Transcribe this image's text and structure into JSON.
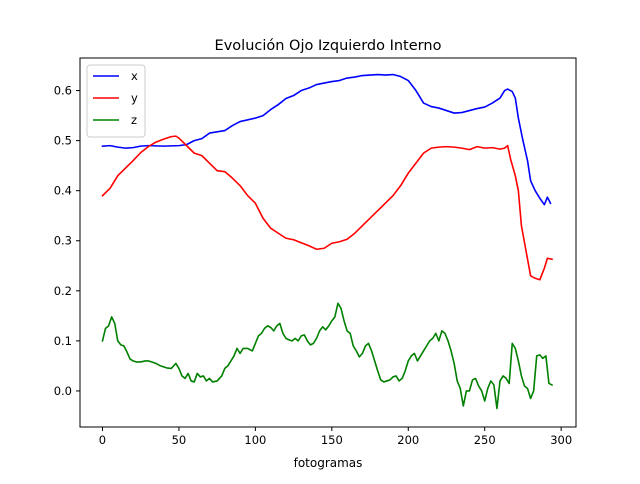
{
  "chart_data": {
    "type": "line",
    "title": "Evolución Ojo Izquierdo Interno",
    "xlabel": "fotogramas",
    "ylabel": "",
    "xlim": [
      -14.7,
      309.7
    ],
    "ylim": [
      -0.072,
      0.665
    ],
    "grid": false,
    "legend_position": "top-left",
    "x_ticks": [
      0,
      50,
      100,
      150,
      200,
      250,
      300
    ],
    "y_ticks": [
      0.0,
      0.1,
      0.2,
      0.3,
      0.4,
      0.5,
      0.6
    ],
    "series": [
      {
        "name": "x",
        "color": "#0000ff",
        "points": [
          [
            0,
            0.489
          ],
          [
            5,
            0.49
          ],
          [
            10,
            0.487
          ],
          [
            15,
            0.485
          ],
          [
            20,
            0.486
          ],
          [
            25,
            0.489
          ],
          [
            30,
            0.49
          ],
          [
            40,
            0.489
          ],
          [
            50,
            0.49
          ],
          [
            55,
            0.492
          ],
          [
            60,
            0.5
          ],
          [
            65,
            0.504
          ],
          [
            70,
            0.515
          ],
          [
            80,
            0.52
          ],
          [
            85,
            0.53
          ],
          [
            90,
            0.538
          ],
          [
            100,
            0.545
          ],
          [
            105,
            0.55
          ],
          [
            110,
            0.562
          ],
          [
            115,
            0.572
          ],
          [
            120,
            0.584
          ],
          [
            125,
            0.59
          ],
          [
            130,
            0.6
          ],
          [
            135,
            0.605
          ],
          [
            140,
            0.612
          ],
          [
            145,
            0.615
          ],
          [
            150,
            0.618
          ],
          [
            155,
            0.62
          ],
          [
            160,
            0.625
          ],
          [
            165,
            0.627
          ],
          [
            170,
            0.63
          ],
          [
            175,
            0.631
          ],
          [
            180,
            0.632
          ],
          [
            185,
            0.631
          ],
          [
            190,
            0.632
          ],
          [
            195,
            0.628
          ],
          [
            200,
            0.62
          ],
          [
            205,
            0.6
          ],
          [
            210,
            0.575
          ],
          [
            215,
            0.568
          ],
          [
            220,
            0.565
          ],
          [
            225,
            0.56
          ],
          [
            230,
            0.555
          ],
          [
            235,
            0.556
          ],
          [
            240,
            0.56
          ],
          [
            245,
            0.564
          ],
          [
            250,
            0.567
          ],
          [
            255,
            0.575
          ],
          [
            260,
            0.585
          ],
          [
            263,
            0.6
          ],
          [
            265,
            0.603
          ],
          [
            268,
            0.598
          ],
          [
            270,
            0.585
          ],
          [
            272,
            0.545
          ],
          [
            275,
            0.5
          ],
          [
            278,
            0.46
          ],
          [
            280,
            0.42
          ],
          [
            283,
            0.4
          ],
          [
            286,
            0.385
          ],
          [
            289,
            0.372
          ],
          [
            291,
            0.387
          ],
          [
            293,
            0.375
          ]
        ]
      },
      {
        "name": "y",
        "color": "#ff0000",
        "points": [
          [
            0,
            0.39
          ],
          [
            5,
            0.405
          ],
          [
            10,
            0.43
          ],
          [
            15,
            0.445
          ],
          [
            20,
            0.46
          ],
          [
            25,
            0.476
          ],
          [
            30,
            0.488
          ],
          [
            35,
            0.497
          ],
          [
            40,
            0.503
          ],
          [
            45,
            0.508
          ],
          [
            48,
            0.509
          ],
          [
            50,
            0.505
          ],
          [
            55,
            0.49
          ],
          [
            60,
            0.475
          ],
          [
            65,
            0.47
          ],
          [
            70,
            0.455
          ],
          [
            75,
            0.44
          ],
          [
            80,
            0.438
          ],
          [
            85,
            0.425
          ],
          [
            90,
            0.41
          ],
          [
            95,
            0.39
          ],
          [
            100,
            0.375
          ],
          [
            105,
            0.345
          ],
          [
            110,
            0.325
          ],
          [
            115,
            0.315
          ],
          [
            120,
            0.305
          ],
          [
            125,
            0.302
          ],
          [
            130,
            0.296
          ],
          [
            135,
            0.29
          ],
          [
            140,
            0.283
          ],
          [
            145,
            0.285
          ],
          [
            150,
            0.295
          ],
          [
            155,
            0.298
          ],
          [
            160,
            0.303
          ],
          [
            165,
            0.315
          ],
          [
            170,
            0.33
          ],
          [
            175,
            0.345
          ],
          [
            180,
            0.36
          ],
          [
            185,
            0.375
          ],
          [
            190,
            0.39
          ],
          [
            195,
            0.41
          ],
          [
            200,
            0.435
          ],
          [
            205,
            0.455
          ],
          [
            210,
            0.475
          ],
          [
            215,
            0.485
          ],
          [
            220,
            0.487
          ],
          [
            225,
            0.488
          ],
          [
            230,
            0.487
          ],
          [
            235,
            0.485
          ],
          [
            240,
            0.482
          ],
          [
            245,
            0.488
          ],
          [
            250,
            0.485
          ],
          [
            255,
            0.486
          ],
          [
            260,
            0.483
          ],
          [
            263,
            0.485
          ],
          [
            265,
            0.49
          ],
          [
            267,
            0.462
          ],
          [
            270,
            0.43
          ],
          [
            272,
            0.4
          ],
          [
            274,
            0.33
          ],
          [
            277,
            0.28
          ],
          [
            280,
            0.23
          ],
          [
            283,
            0.225
          ],
          [
            286,
            0.222
          ],
          [
            289,
            0.245
          ],
          [
            291,
            0.265
          ],
          [
            294,
            0.263
          ]
        ]
      },
      {
        "name": "z",
        "color": "#008000",
        "points": [
          [
            0,
            0.1
          ],
          [
            2,
            0.125
          ],
          [
            4,
            0.13
          ],
          [
            6,
            0.148
          ],
          [
            8,
            0.135
          ],
          [
            10,
            0.1
          ],
          [
            12,
            0.092
          ],
          [
            14,
            0.09
          ],
          [
            16,
            0.078
          ],
          [
            18,
            0.064
          ],
          [
            20,
            0.06
          ],
          [
            22,
            0.058
          ],
          [
            25,
            0.058
          ],
          [
            28,
            0.06
          ],
          [
            30,
            0.06
          ],
          [
            32,
            0.058
          ],
          [
            35,
            0.055
          ],
          [
            38,
            0.05
          ],
          [
            40,
            0.048
          ],
          [
            42,
            0.046
          ],
          [
            45,
            0.045
          ],
          [
            48,
            0.055
          ],
          [
            50,
            0.045
          ],
          [
            52,
            0.03
          ],
          [
            54,
            0.025
          ],
          [
            56,
            0.035
          ],
          [
            58,
            0.02
          ],
          [
            60,
            0.018
          ],
          [
            62,
            0.035
          ],
          [
            64,
            0.028
          ],
          [
            66,
            0.03
          ],
          [
            68,
            0.02
          ],
          [
            70,
            0.025
          ],
          [
            72,
            0.018
          ],
          [
            75,
            0.02
          ],
          [
            78,
            0.03
          ],
          [
            80,
            0.045
          ],
          [
            82,
            0.05
          ],
          [
            84,
            0.06
          ],
          [
            86,
            0.07
          ],
          [
            88,
            0.085
          ],
          [
            90,
            0.075
          ],
          [
            92,
            0.085
          ],
          [
            95,
            0.085
          ],
          [
            98,
            0.08
          ],
          [
            100,
            0.095
          ],
          [
            102,
            0.11
          ],
          [
            104,
            0.115
          ],
          [
            106,
            0.125
          ],
          [
            108,
            0.13
          ],
          [
            110,
            0.127
          ],
          [
            112,
            0.12
          ],
          [
            114,
            0.13
          ],
          [
            116,
            0.135
          ],
          [
            118,
            0.115
          ],
          [
            120,
            0.105
          ],
          [
            122,
            0.102
          ],
          [
            124,
            0.1
          ],
          [
            126,
            0.105
          ],
          [
            128,
            0.1
          ],
          [
            130,
            0.11
          ],
          [
            132,
            0.112
          ],
          [
            134,
            0.1
          ],
          [
            136,
            0.092
          ],
          [
            138,
            0.095
          ],
          [
            140,
            0.105
          ],
          [
            142,
            0.12
          ],
          [
            144,
            0.128
          ],
          [
            146,
            0.122
          ],
          [
            148,
            0.13
          ],
          [
            150,
            0.14
          ],
          [
            152,
            0.148
          ],
          [
            154,
            0.175
          ],
          [
            156,
            0.165
          ],
          [
            158,
            0.14
          ],
          [
            160,
            0.12
          ],
          [
            162,
            0.115
          ],
          [
            164,
            0.09
          ],
          [
            166,
            0.08
          ],
          [
            168,
            0.068
          ],
          [
            170,
            0.075
          ],
          [
            172,
            0.09
          ],
          [
            174,
            0.095
          ],
          [
            176,
            0.08
          ],
          [
            178,
            0.06
          ],
          [
            180,
            0.04
          ],
          [
            182,
            0.022
          ],
          [
            184,
            0.018
          ],
          [
            186,
            0.02
          ],
          [
            188,
            0.022
          ],
          [
            190,
            0.028
          ],
          [
            192,
            0.03
          ],
          [
            194,
            0.02
          ],
          [
            196,
            0.025
          ],
          [
            198,
            0.04
          ],
          [
            200,
            0.06
          ],
          [
            202,
            0.07
          ],
          [
            204,
            0.075
          ],
          [
            206,
            0.06
          ],
          [
            208,
            0.07
          ],
          [
            210,
            0.08
          ],
          [
            212,
            0.09
          ],
          [
            214,
            0.1
          ],
          [
            216,
            0.105
          ],
          [
            218,
            0.115
          ],
          [
            220,
            0.1
          ],
          [
            222,
            0.12
          ],
          [
            224,
            0.115
          ],
          [
            226,
            0.1
          ],
          [
            228,
            0.08
          ],
          [
            230,
            0.055
          ],
          [
            232,
            0.02
          ],
          [
            234,
            0.005
          ],
          [
            236,
            -0.03
          ],
          [
            238,
            0.0
          ],
          [
            240,
            0.0
          ],
          [
            242,
            0.022
          ],
          [
            244,
            0.025
          ],
          [
            246,
            0.01
          ],
          [
            248,
            0.0
          ],
          [
            250,
            -0.02
          ],
          [
            252,
            0.005
          ],
          [
            254,
            0.02
          ],
          [
            256,
            0.012
          ],
          [
            258,
            -0.035
          ],
          [
            260,
            0.02
          ],
          [
            262,
            0.03
          ],
          [
            264,
            0.025
          ],
          [
            266,
            0.015
          ],
          [
            268,
            0.095
          ],
          [
            270,
            0.085
          ],
          [
            272,
            0.06
          ],
          [
            274,
            0.03
          ],
          [
            276,
            0.01
          ],
          [
            278,
            0.005
          ],
          [
            280,
            -0.015
          ],
          [
            282,
            0.0
          ],
          [
            284,
            0.07
          ],
          [
            286,
            0.072
          ],
          [
            288,
            0.065
          ],
          [
            290,
            0.07
          ],
          [
            292,
            0.015
          ],
          [
            294,
            0.012
          ]
        ]
      }
    ]
  }
}
